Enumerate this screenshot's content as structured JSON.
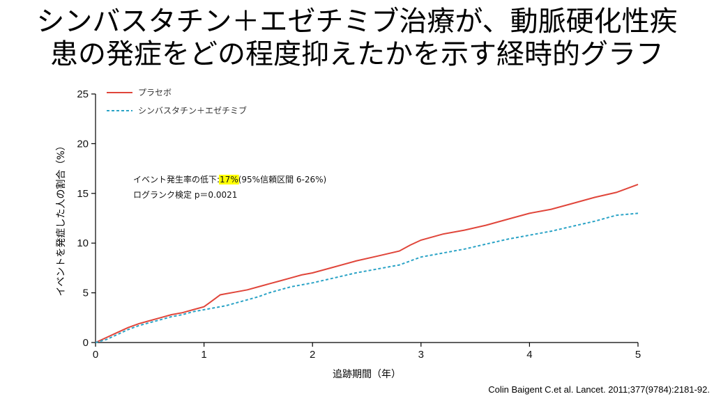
{
  "slide": {
    "title_line1": "シンバスタチン＋エゼチミブ治療が、動脈硬化性疾",
    "title_line2": "患の発症をどの程度抑えたかを示す経時的グラフ",
    "citation": "Colin Baigent C.et al. Lancet. 2011;377(9784):2181-92."
  },
  "chart_data": {
    "type": "line",
    "xlabel": "追跡期間（年）",
    "ylabel": "イベントを発症した人の割合（%）",
    "xlim": [
      0,
      5
    ],
    "ylim": [
      0,
      25
    ],
    "xticks": [
      0,
      1,
      2,
      3,
      4,
      5
    ],
    "yticks": [
      0,
      5,
      10,
      15,
      20,
      25
    ],
    "grid": false,
    "legend_position": "top-left",
    "annotation": {
      "line1_prefix": "イベント発生率の低下:",
      "line1_highlight": "17%",
      "line1_suffix": "(95%信頼区間 6-26%)",
      "line2": "ログランク検定 p＝0.0021",
      "highlight_color": "#ffff00"
    },
    "series": [
      {
        "name": "プラセボ",
        "color": "#e0453a",
        "dash": "solid",
        "x": [
          0,
          0.1,
          0.2,
          0.3,
          0.4,
          0.5,
          0.6,
          0.7,
          0.8,
          0.9,
          1.0,
          1.05,
          1.1,
          1.15,
          1.2,
          1.3,
          1.4,
          1.5,
          1.6,
          1.7,
          1.8,
          1.9,
          2.0,
          2.2,
          2.4,
          2.6,
          2.8,
          2.9,
          3.0,
          3.2,
          3.4,
          3.6,
          3.8,
          4.0,
          4.2,
          4.4,
          4.6,
          4.8,
          5.0
        ],
        "y": [
          0,
          0.5,
          1.0,
          1.5,
          1.9,
          2.2,
          2.5,
          2.8,
          3.0,
          3.3,
          3.6,
          4.0,
          4.4,
          4.8,
          4.9,
          5.1,
          5.3,
          5.6,
          5.9,
          6.2,
          6.5,
          6.8,
          7.0,
          7.6,
          8.2,
          8.7,
          9.2,
          9.8,
          10.3,
          10.9,
          11.3,
          11.8,
          12.4,
          13.0,
          13.4,
          14.0,
          14.6,
          15.1,
          15.9
        ]
      },
      {
        "name": "シンバスタチン＋エゼチミブ",
        "color": "#2aa3c6",
        "dash": "dashed",
        "x": [
          0,
          0.1,
          0.2,
          0.3,
          0.4,
          0.5,
          0.6,
          0.7,
          0.8,
          0.9,
          1.0,
          1.1,
          1.2,
          1.3,
          1.4,
          1.5,
          1.6,
          1.7,
          1.8,
          2.0,
          2.2,
          2.4,
          2.6,
          2.8,
          2.9,
          3.0,
          3.2,
          3.4,
          3.6,
          3.8,
          4.0,
          4.2,
          4.4,
          4.6,
          4.8,
          5.0
        ],
        "y": [
          0,
          0.3,
          0.8,
          1.3,
          1.7,
          2.0,
          2.3,
          2.6,
          2.8,
          3.1,
          3.3,
          3.5,
          3.7,
          4.0,
          4.3,
          4.6,
          5.0,
          5.3,
          5.6,
          6.0,
          6.5,
          7.0,
          7.4,
          7.8,
          8.2,
          8.6,
          9.0,
          9.4,
          9.9,
          10.4,
          10.8,
          11.2,
          11.7,
          12.2,
          12.8,
          13.0
        ]
      }
    ]
  }
}
